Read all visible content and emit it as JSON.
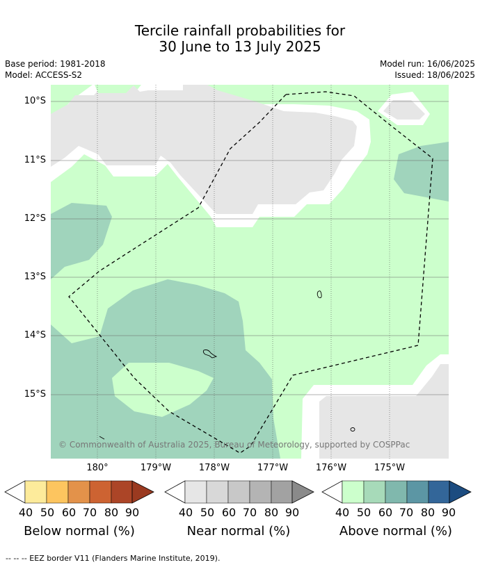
{
  "title_line1": "Tercile rainfall probabilities for",
  "title_line2": "30 June to 13 July 2025",
  "base_period": "Base period: 1981-2018",
  "model": "Model: ACCESS-S2",
  "model_run": "Model run: 16/06/2025",
  "issued": "Issued: 18/06/2025",
  "lat_labels": [
    "10°S",
    "11°S",
    "12°S",
    "13°S",
    "14°S",
    "15°S"
  ],
  "lon_labels": [
    "180°",
    "179°W",
    "178°W",
    "177°W",
    "176°W",
    "175°W"
  ],
  "copyright": "© Commonwealth of Australia 2025, Bureau of Meteorology, supported by COSPPac",
  "legends": [
    {
      "label": "Below normal (%)",
      "ticks": [
        "40",
        "50",
        "60",
        "70",
        "80",
        "90"
      ],
      "colors": [
        "#fdeb9b",
        "#fdc55f",
        "#e3924a",
        "#cd6332",
        "#ac4527",
        "#9a3a20"
      ]
    },
    {
      "label": "Near normal (%)",
      "ticks": [
        "40",
        "50",
        "60",
        "70",
        "80",
        "90"
      ],
      "colors": [
        "#e6e6e6",
        "#d8d8d8",
        "#c8c8c8",
        "#b4b4b4",
        "#a2a2a2",
        "#8a8a8a"
      ]
    },
    {
      "label": "Above normal (%)",
      "ticks": [
        "40",
        "50",
        "60",
        "70",
        "80",
        "90"
      ],
      "colors": [
        "#ccffcc",
        "#a7dab9",
        "#80b8ad",
        "#5c96a4",
        "#336699",
        "#1c4c80"
      ]
    }
  ],
  "footnote": "-- -- -- EEZ border V11 (Flanders Marine Institute, 2019)."
}
